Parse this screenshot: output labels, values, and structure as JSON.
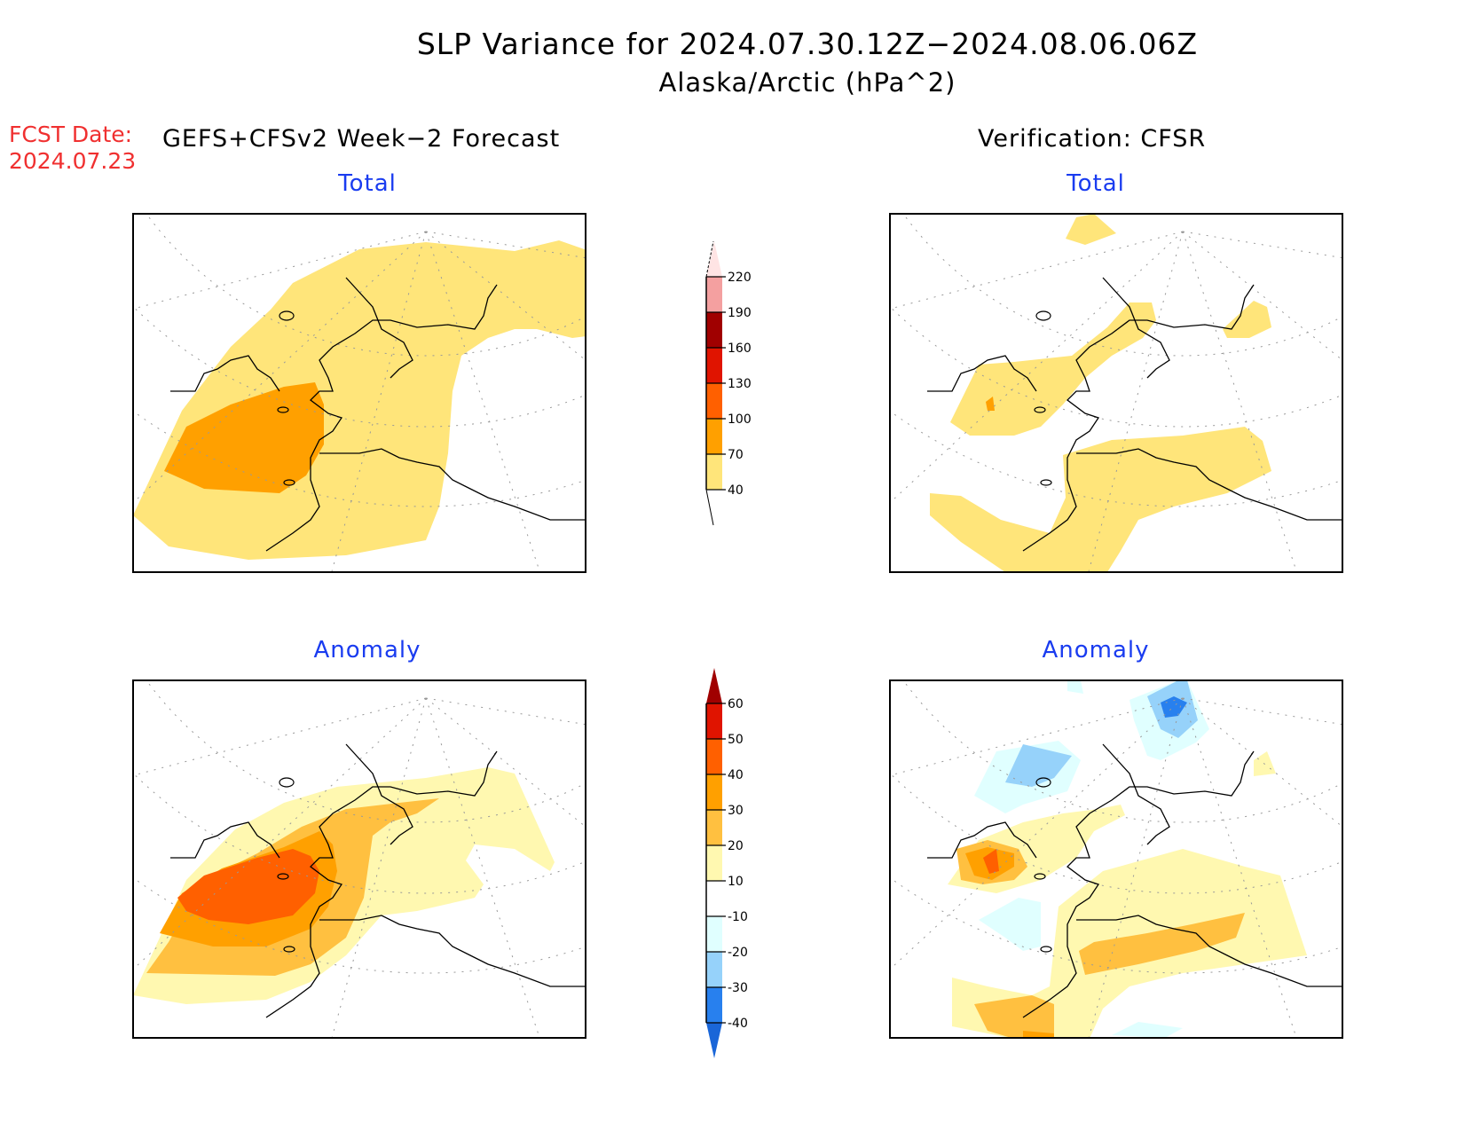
{
  "header": {
    "title": "SLP Variance for 2024.07.30.12Z−2024.08.06.06Z",
    "subtitle": "Alaska/Arctic (hPa^2)",
    "fcst_date_label": "FCST Date:",
    "fcst_date_value": "2024.07.23",
    "left_column_heading": "GEFS+CFSv2 Week−2 Forecast",
    "right_column_heading": "Verification: CFSR"
  },
  "chart_data": [
    {
      "type": "heatmap",
      "title": "Total",
      "column": "GEFS+CFSv2 Week-2 Forecast",
      "units": "hPa^2",
      "region": "Alaska/Arctic",
      "features": [
        {
          "level_range": [
            40,
            70
          ],
          "description": "broad band from Bering Sea/East Siberia north to Arctic coast"
        },
        {
          "level_range": [
            70,
            100
          ],
          "description": "core over Bering Sea / Chukotka west of Alaska"
        }
      ]
    },
    {
      "type": "heatmap",
      "title": "Total",
      "column": "Verification: CFSR",
      "units": "hPa^2",
      "region": "Alaska/Arctic",
      "features": [
        {
          "level_range": [
            40,
            70
          ],
          "description": "band across Chukotka, small patch NE Canada Arctic coast, broad region across Gulf of Alaska and southern Alaska"
        },
        {
          "level_range": [
            70,
            100
          ],
          "description": "tiny spot over eastern Siberia"
        }
      ]
    },
    {
      "type": "heatmap",
      "title": "Anomaly",
      "column": "GEFS+CFSv2 Week-2 Forecast",
      "units": "hPa^2",
      "features": [
        {
          "level_range": [
            10,
            20
          ],
          "description": "broad region from Bering Sea to Beaufort Sea"
        },
        {
          "level_range": [
            20,
            30
          ],
          "description": "band along Siberian coast"
        },
        {
          "level_range": [
            30,
            40
          ],
          "description": "ring around core"
        },
        {
          "level_range": [
            40,
            50
          ],
          "description": "core over Bering Sea / Chukotka"
        }
      ]
    },
    {
      "type": "heatmap",
      "title": "Anomaly",
      "column": "Verification: CFSR",
      "units": "hPa^2",
      "features": [
        {
          "level_range": [
            -40,
            -30
          ],
          "description": "small core over Arctic Ocean north"
        },
        {
          "level_range": [
            -30,
            -20
          ],
          "description": "two Arctic Ocean patches"
        },
        {
          "level_range": [
            -20,
            -10
          ],
          "description": "surrounding negative areas and small patch over Bering Sea"
        },
        {
          "level_range": [
            10,
            20
          ],
          "description": "southern Alaska / Gulf of Alaska region"
        },
        {
          "level_range": [
            20,
            30
          ],
          "description": "band across southern Alaska and south of Aleutians"
        },
        {
          "level_range": [
            30,
            40
          ],
          "description": "spot over eastern Siberia"
        },
        {
          "level_range": [
            40,
            50
          ],
          "description": "small core over eastern Siberia"
        }
      ]
    }
  ],
  "colorbars": {
    "total": {
      "levels": [
        "40",
        "70",
        "100",
        "130",
        "160",
        "190",
        "220"
      ],
      "colors": [
        "#ffe57a",
        "#ffa000",
        "#ff6000",
        "#e01400",
        "#a00000",
        "#f4a0a0",
        "#ffe4e4"
      ],
      "extend_low_color": "#ffffff"
    },
    "anomaly": {
      "levels": [
        "-40",
        "-30",
        "-20",
        "-10",
        "10",
        "20",
        "30",
        "40",
        "50",
        "60"
      ],
      "colors": [
        "#1a66d8",
        "#2880ee",
        "#96d2fa",
        "#e0ffff",
        "#ffffff",
        "#fff8b0",
        "#ffc040",
        "#ffa000",
        "#ff6000",
        "#e01400",
        "#a00000"
      ]
    }
  },
  "panels": {
    "top_left_title": "Total",
    "top_right_title": "Total",
    "bottom_left_title": "Anomaly",
    "bottom_right_title": "Anomaly"
  }
}
